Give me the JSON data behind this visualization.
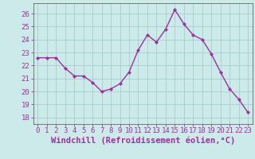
{
  "x": [
    0,
    1,
    2,
    3,
    4,
    5,
    6,
    7,
    8,
    9,
    10,
    11,
    12,
    13,
    14,
    15,
    16,
    17,
    18,
    19,
    20,
    21,
    22,
    23
  ],
  "y": [
    22.6,
    22.6,
    22.6,
    21.8,
    21.2,
    21.2,
    20.7,
    20.0,
    20.2,
    20.6,
    21.5,
    23.2,
    24.35,
    23.8,
    24.8,
    26.3,
    25.2,
    24.35,
    24.0,
    22.9,
    21.5,
    20.2,
    19.4,
    18.4
  ],
  "line_color": "#993399",
  "marker": "D",
  "marker_size": 2.2,
  "bg_color": "#cceaea",
  "grid_color": "#aacccc",
  "xlabel": "Windchill (Refroidissement éolien,°C)",
  "ylabel": "",
  "ylim": [
    17.5,
    26.8
  ],
  "xlim": [
    -0.5,
    23.5
  ],
  "yticks": [
    18,
    19,
    20,
    21,
    22,
    23,
    24,
    25,
    26
  ],
  "xticks": [
    0,
    1,
    2,
    3,
    4,
    5,
    6,
    7,
    8,
    9,
    10,
    11,
    12,
    13,
    14,
    15,
    16,
    17,
    18,
    19,
    20,
    21,
    22,
    23
  ],
  "tick_color": "#993399",
  "label_color": "#993399",
  "font_size": 6.5,
  "xlabel_fontsize": 7.5,
  "axis_color": "#666666",
  "line_width": 1.0
}
